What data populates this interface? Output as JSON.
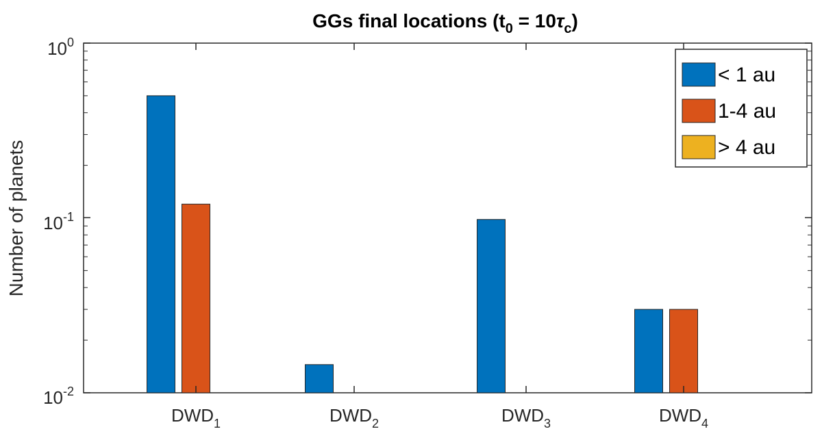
{
  "chart_data": {
    "type": "bar",
    "title": "GGs final locations (t",
    "title_sub": "0",
    "title_mid": " = 10",
    "title_tau": "τ",
    "title_tau_sub": "c",
    "title_end": ")",
    "ylabel": "Number of planets",
    "yscale": "log",
    "ylim": [
      0.01,
      1
    ],
    "yticks": [
      {
        "base": "10",
        "exp": "0"
      },
      {
        "base": "10",
        "exp": "-1"
      },
      {
        "base": "10",
        "exp": "-2"
      }
    ],
    "categories": [
      {
        "base": "DWD",
        "sub": "1"
      },
      {
        "base": "DWD",
        "sub": "2"
      },
      {
        "base": "DWD",
        "sub": "3"
      },
      {
        "base": "DWD",
        "sub": "4"
      }
    ],
    "series": [
      {
        "name": "< 1 au",
        "color": "#0072BD",
        "values": [
          0.5,
          0.0145,
          0.098,
          0.03
        ]
      },
      {
        "name": "1-4 au",
        "color": "#D95319",
        "values": [
          0.12,
          null,
          null,
          0.03
        ]
      },
      {
        "name": "> 4 au",
        "color": "#EDB120",
        "values": [
          null,
          null,
          null,
          null
        ]
      }
    ],
    "legend_position": "top-right",
    "grid": false
  }
}
